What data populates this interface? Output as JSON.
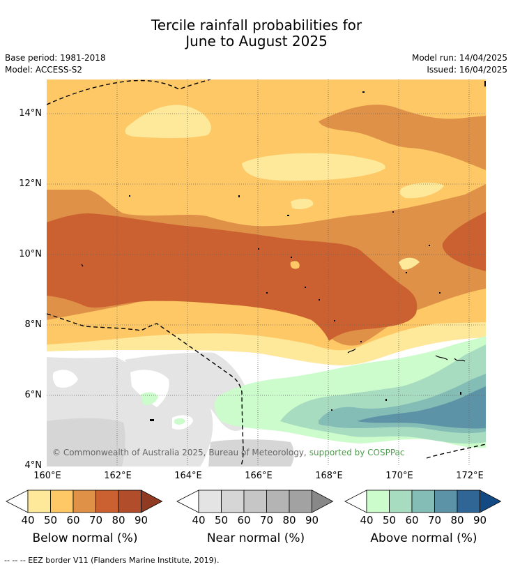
{
  "title_line1": "Tercile rainfall probabilities for",
  "title_line2": "June to August 2025",
  "base_period": "Base period: 1981-2018",
  "model": "Model: ACCESS-S2",
  "model_run": "Model run: 14/04/2025",
  "issued": "Issued: 16/04/2025",
  "copyright": "© Commonwealth of Australia 2025, Bureau of Meteorology,",
  "copyright_supported": "supported by COSPPac",
  "map": {
    "lat_labels": [
      "14°N",
      "12°N",
      "10°N",
      "8°N",
      "6°N",
      "4°N"
    ],
    "lon_labels": [
      "160°E",
      "162°E",
      "164°E",
      "166°E",
      "168°E",
      "170°E",
      "172°E"
    ]
  },
  "colorbars": [
    {
      "title": "Below normal (%)",
      "ticks": [
        "40",
        "50",
        "60",
        "70",
        "80",
        "90"
      ],
      "colors": [
        "#fee89a",
        "#fdc865",
        "#df9148",
        "#cb6130",
        "#b24d2c",
        "#8f3a21"
      ]
    },
    {
      "title": "Near normal (%)",
      "ticks": [
        "40",
        "50",
        "60",
        "70",
        "80",
        "90"
      ],
      "colors": [
        "#e4e4e4",
        "#d6d6d6",
        "#c6c6c6",
        "#b4b4b4",
        "#a2a2a2",
        "#888888"
      ]
    },
    {
      "title": "Above normal (%)",
      "ticks": [
        "40",
        "50",
        "60",
        "70",
        "80",
        "90"
      ],
      "colors": [
        "#ccfbcc",
        "#a7dcc0",
        "#84bcb6",
        "#5c93a6",
        "#2f6695",
        "#134a84"
      ]
    }
  ],
  "footnote": "--  --  -- EEZ border V11 (Flanders Marine Institute, 2019)."
}
